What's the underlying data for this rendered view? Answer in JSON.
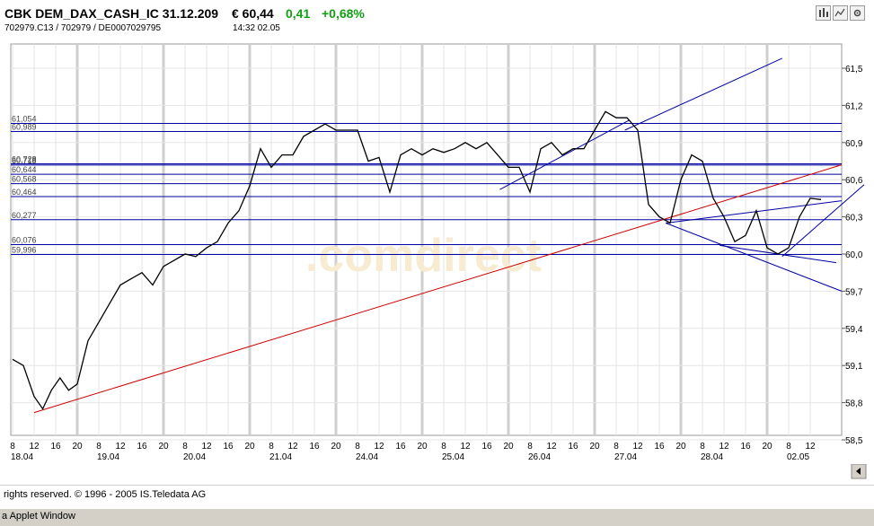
{
  "header": {
    "title": "CBK DEM_DAX_CASH_IC 31.12.209",
    "price": "€ 60,44",
    "change": "0,41",
    "change_pct": "+0,68%",
    "ids": "702979.C13  /  702979  /  DE0007029795",
    "time": "14:32   02.05",
    "tools": [
      "chart-type-icon",
      "indicator-icon",
      "settings-icon"
    ]
  },
  "footer": {
    "copyright": "rights reserved. © 1996 - 2005 IS.Teledata AG",
    "status": "a Applet Window"
  },
  "watermark": ".comdirect",
  "colors": {
    "price_line": "#000000",
    "support_lines": "#0000a0",
    "trend_line": "#cc0000",
    "grid": "#d8d8d8"
  },
  "chart_data": {
    "type": "line",
    "title": "",
    "xlabel": "",
    "ylabel": "",
    "ylim": [
      58.5,
      61.6
    ],
    "y_ticks": [
      "58,5",
      "58,8",
      "59,1",
      "59,4",
      "59,7",
      "60,0",
      "60,3",
      "60,6",
      "60,9",
      "61,2",
      "61,5"
    ],
    "hour_ticks": [
      "8",
      "12",
      "16",
      "20",
      "8",
      "12",
      "16",
      "20",
      "8",
      "12",
      "16",
      "20",
      "8",
      "12",
      "16",
      "20",
      "8",
      "12",
      "16",
      "20",
      "8",
      "12",
      "16",
      "20",
      "8",
      "12",
      "16",
      "20",
      "8",
      "12",
      "16",
      "20",
      "8",
      "12",
      "16",
      "20",
      "8",
      "12"
    ],
    "day_labels": [
      "18.04",
      "19.04",
      "20.04",
      "21.04",
      "24.04",
      "25.04",
      "26.04",
      "27.04",
      "28.04",
      "02.05"
    ],
    "horizontal_levels": [
      "61,054",
      "60,989",
      "60,728",
      "60,718",
      "60,644",
      "60,568",
      "60,464",
      "60,277",
      "60,076",
      "59,996"
    ],
    "level_values": [
      61.054,
      60.989,
      60.728,
      60.718,
      60.644,
      60.568,
      60.464,
      60.277,
      60.076,
      59.996
    ],
    "series": [
      {
        "t": [
          0,
          0.5,
          1,
          1.4,
          1.8,
          2.2,
          2.6,
          3,
          3.5,
          4,
          4.5,
          5,
          5.5,
          6,
          6.5,
          7,
          7.5,
          8,
          8.5,
          9,
          9.5,
          10,
          10.5,
          11,
          11.5,
          12,
          12.5,
          13,
          13.5,
          14,
          14.5,
          15,
          15.5,
          16,
          16.5,
          17,
          17.5,
          18,
          18.5,
          19,
          19.5,
          20,
          20.5,
          21,
          21.5,
          22,
          22.5,
          23,
          23.5,
          24,
          24.5,
          25,
          25.5,
          26,
          26.5,
          27,
          27.5,
          28,
          28.5,
          29,
          29.5,
          30,
          30.5,
          31,
          31.5,
          32,
          32.5,
          33,
          33.5,
          34,
          34.5,
          35,
          35.5,
          36,
          36.5,
          37,
          37.5
        ],
        "values": [
          59.15,
          59.1,
          58.85,
          58.75,
          58.9,
          59.0,
          58.9,
          58.95,
          59.3,
          59.45,
          59.6,
          59.75,
          59.8,
          59.85,
          59.75,
          59.9,
          59.95,
          60.0,
          59.98,
          60.05,
          60.1,
          60.25,
          60.35,
          60.55,
          60.85,
          60.7,
          60.8,
          60.8,
          60.95,
          61.0,
          61.05,
          61.0,
          61.0,
          61.0,
          60.75,
          60.78,
          60.5,
          60.8,
          60.85,
          60.8,
          60.85,
          60.82,
          60.85,
          60.9,
          60.85,
          60.9,
          60.8,
          60.7,
          60.7,
          60.5,
          60.85,
          60.9,
          60.8,
          60.85,
          60.85,
          61.0,
          61.15,
          61.1,
          61.1,
          61.0,
          60.4,
          60.3,
          60.25,
          60.6,
          60.8,
          60.75,
          60.45,
          60.3,
          60.1,
          60.15,
          60.35,
          60.05,
          60.0,
          60.05,
          60.3,
          60.45,
          60.44
        ]
      }
    ]
  }
}
